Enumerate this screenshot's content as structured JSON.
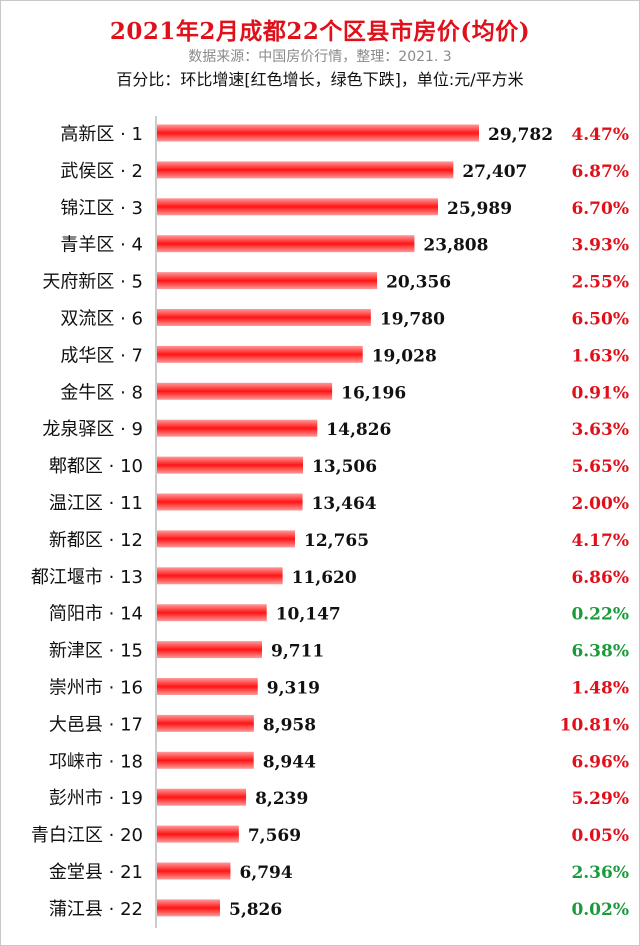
{
  "header": {
    "title": "2021年2月成都22个区县市房价(均价)",
    "source": "数据来源：中国房价行情，整理：2021. 3",
    "note": "百分比：环比增速[红色增长，绿色下跌]，单位:元/平方米"
  },
  "colors": {
    "title": "#e0101a",
    "bar": "#ff1a1a",
    "increase": "#e0101a",
    "decrease": "#1a9a3a"
  },
  "chart_data": {
    "type": "bar",
    "orientation": "horizontal",
    "title": "2021年2月成都22个区县市房价(均价)",
    "unit": "元/平方米",
    "categories": [
      "高新区 · 1",
      "武侯区 · 2",
      "锦江区 · 3",
      "青羊区 · 4",
      "天府新区 · 5",
      "双流区 · 6",
      "成华区 · 7",
      "金牛区 · 8",
      "龙泉驿区 · 9",
      "郫都区 · 10",
      "温江区 · 11",
      "新都区 · 12",
      "都江堰市 · 13",
      "简阳市 · 14",
      "新津区 · 15",
      "崇州市 · 16",
      "大邑县 · 17",
      "邛崃市 · 18",
      "彭州市 · 19",
      "青白江区 · 20",
      "金堂县 · 21",
      "蒲江县 · 22"
    ],
    "values": [
      29782,
      27407,
      25989,
      23808,
      20356,
      19780,
      19028,
      16196,
      14826,
      13506,
      13464,
      12765,
      11620,
      10147,
      9711,
      9319,
      8958,
      8944,
      8239,
      7569,
      6794,
      5826
    ],
    "value_labels": [
      "29,782",
      "27,407",
      "25,989",
      "23,808",
      "20,356",
      "19,780",
      "19,028",
      "16,196",
      "14,826",
      "13,506",
      "13,464",
      "12,765",
      "11,620",
      "10,147",
      "9,711",
      "9,319",
      "8,958",
      "8,944",
      "8,239",
      "7,569",
      "6,794",
      "5,826"
    ],
    "growth": [
      "4.47%",
      "6.87%",
      "6.70%",
      "3.93%",
      "2.55%",
      "6.50%",
      "1.63%",
      "0.91%",
      "3.63%",
      "5.65%",
      "2.00%",
      "4.17%",
      "6.86%",
      "0.22%",
      "6.38%",
      "1.48%",
      "10.81%",
      "6.96%",
      "5.29%",
      "0.05%",
      "2.36%",
      "0.02%"
    ],
    "growth_direction": [
      "up",
      "up",
      "up",
      "up",
      "up",
      "up",
      "up",
      "up",
      "up",
      "up",
      "up",
      "up",
      "up",
      "down",
      "down",
      "up",
      "up",
      "up",
      "up",
      "up",
      "down",
      "down"
    ],
    "xlim": [
      0,
      29782
    ],
    "grid": false,
    "legend": "none"
  }
}
